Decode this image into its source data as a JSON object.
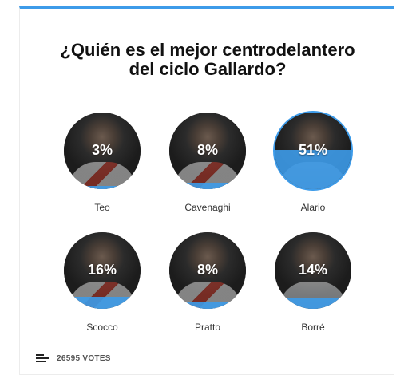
{
  "poll": {
    "accent": "#3d9be9",
    "title": "¿Quién es el mejor centrodelantero del ciclo Gallardo?",
    "options": [
      {
        "name": "Teo",
        "percent": "3%",
        "fill_fraction": 0.03
      },
      {
        "name": "Cavenaghi",
        "percent": "8%",
        "fill_fraction": 0.08
      },
      {
        "name": "Alario",
        "percent": "51%",
        "fill_fraction": 0.51
      },
      {
        "name": "Scocco",
        "percent": "16%",
        "fill_fraction": 0.16
      },
      {
        "name": "Pratto",
        "percent": "8%",
        "fill_fraction": 0.08
      },
      {
        "name": "Borré",
        "percent": "14%",
        "fill_fraction": 0.14
      }
    ],
    "votes_label": "26595 VOTES",
    "icons": {
      "results": "bar-list-icon"
    }
  }
}
